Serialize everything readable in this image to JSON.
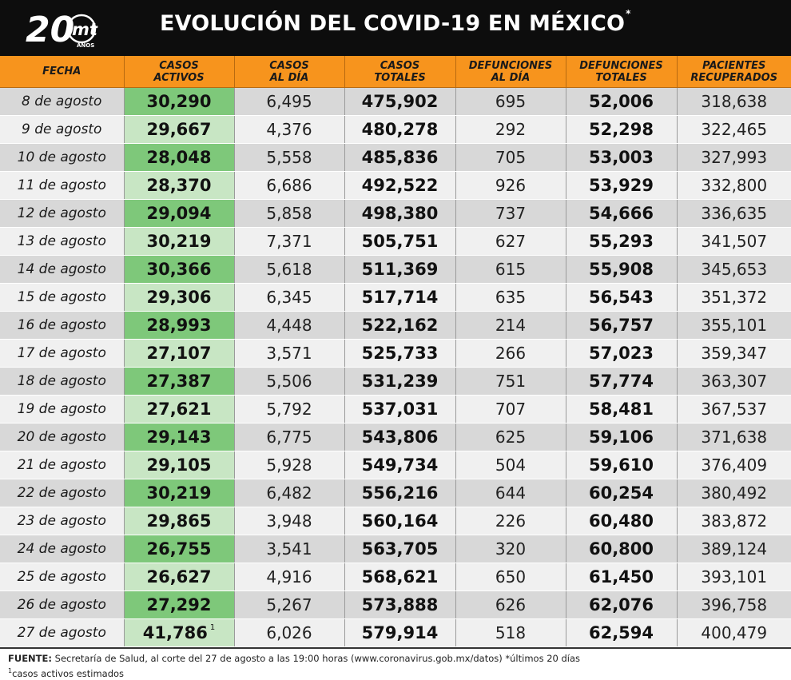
{
  "header": {
    "logo": {
      "number": "20",
      "brand": "mt",
      "years": "AÑOS"
    },
    "title": "EVOLUCIÓN DEL COVID-19 EN MÉXICO",
    "title_mark": "*"
  },
  "chart_data": {
    "type": "table",
    "columns": [
      "FECHA",
      "CASOS\nACTIVOS",
      "CASOS\nAL DÍA",
      "CASOS\nTOTALES",
      "DEFUNCIONES\nAL DÍA",
      "DEFUNCIONES\nTOTALES",
      "PACIENTES\nRECUPERADOS"
    ],
    "rows": [
      [
        "8 de agosto",
        "30,290",
        "6,495",
        "475,902",
        "695",
        "52,006",
        "318,638"
      ],
      [
        "9 de agosto",
        "29,667",
        "4,376",
        "480,278",
        "292",
        "52,298",
        "322,465"
      ],
      [
        "10 de agosto",
        "28,048",
        "5,558",
        "485,836",
        "705",
        "53,003",
        "327,993"
      ],
      [
        "11 de agosto",
        "28,370",
        "6,686",
        "492,522",
        "926",
        "53,929",
        "332,800"
      ],
      [
        "12 de agosto",
        "29,094",
        "5,858",
        "498,380",
        "737",
        "54,666",
        "336,635"
      ],
      [
        "13 de agosto",
        "30,219",
        "7,371",
        "505,751",
        "627",
        "55,293",
        "341,507"
      ],
      [
        "14 de agosto",
        "30,366",
        "5,618",
        "511,369",
        "615",
        "55,908",
        "345,653"
      ],
      [
        "15 de agosto",
        "29,306",
        "6,345",
        "517,714",
        "635",
        "56,543",
        "351,372"
      ],
      [
        "16 de agosto",
        "28,993",
        "4,448",
        "522,162",
        "214",
        "56,757",
        "355,101"
      ],
      [
        "17 de agosto",
        "27,107",
        "3,571",
        "525,733",
        "266",
        "57,023",
        "359,347"
      ],
      [
        "18 de agosto",
        "27,387",
        "5,506",
        "531,239",
        "751",
        "57,774",
        "363,307"
      ],
      [
        "19 de agosto",
        "27,621",
        "5,792",
        "537,031",
        "707",
        "58,481",
        "367,537"
      ],
      [
        "20 de agosto",
        "29,143",
        "6,775",
        "543,806",
        "625",
        "59,106",
        "371,638"
      ],
      [
        "21 de agosto",
        "29,105",
        "5,928",
        "549,734",
        "504",
        "59,610",
        "376,409"
      ],
      [
        "22 de agosto",
        "30,219",
        "6,482",
        "556,216",
        "644",
        "60,254",
        "380,492"
      ],
      [
        "23 de agosto",
        "29,865",
        "3,948",
        "560,164",
        "226",
        "60,480",
        "383,872"
      ],
      [
        "24 de agosto",
        "26,755",
        "3,541",
        "563,705",
        "320",
        "60,800",
        "389,124"
      ],
      [
        "25 de agosto",
        "26,627",
        "4,916",
        "568,621",
        "650",
        "61,450",
        "393,101"
      ],
      [
        "26 de agosto",
        "27,292",
        "5,267",
        "573,888",
        "626",
        "62,076",
        "396,758"
      ],
      [
        "27 de agosto",
        "41,786",
        "6,026",
        "579,914",
        "518",
        "62,594",
        "400,479"
      ]
    ],
    "footnote_mark": "1",
    "footnote_row": 19
  },
  "footer": {
    "source_label": "FUENTE:",
    "source_text": " Secretaría de Salud, al corte del 27 de agosto a las 19:00 horas (www.coronavirus.gob.mx/datos) *últimos 20 días",
    "note_mark": "1",
    "note_text": "casos activos estimados"
  },
  "colors": {
    "header_bg": "#0d0d0d",
    "column_header_bg": "#f7941d",
    "active_dark": "#7ec87a",
    "active_light": "#c8e6c4",
    "row_dark": "#d8d8d8",
    "row_light": "#f0f0f0"
  }
}
